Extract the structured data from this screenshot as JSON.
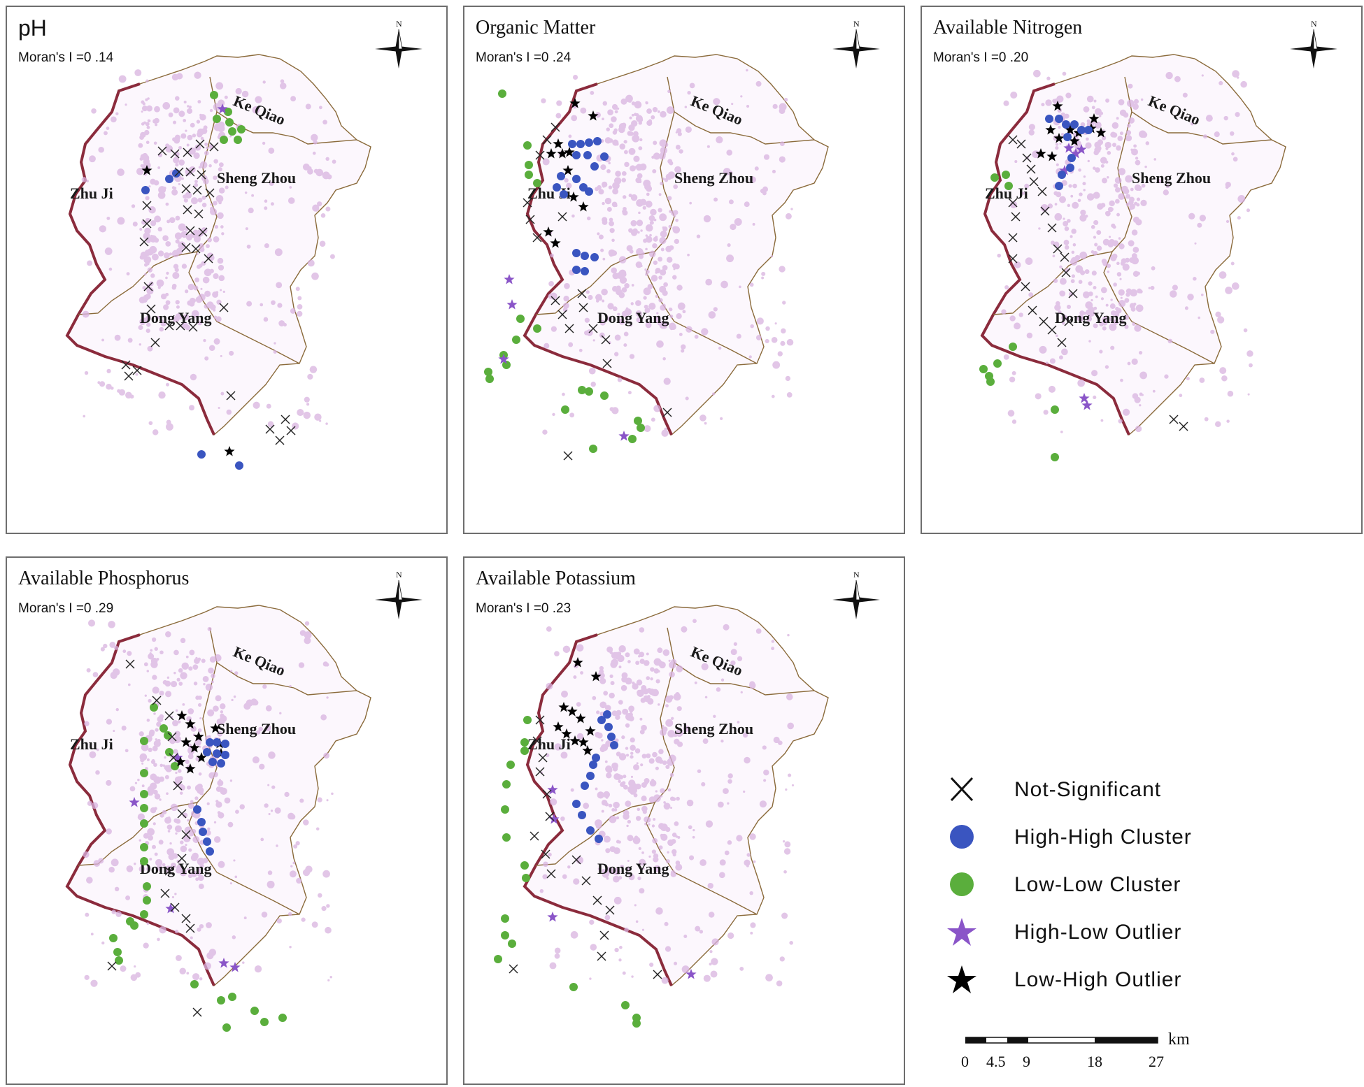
{
  "panels": [
    {
      "title": "pH",
      "moran": "Moran's I =0 .14",
      "title_style": "sans"
    },
    {
      "title": "Organic Matter",
      "moran": "Moran's I =0 .24",
      "title_style": "serif"
    },
    {
      "title": "Available Nitrogen",
      "moran": "Moran's I =0 .20",
      "title_style": "serif"
    },
    {
      "title": "Available Phosphorus",
      "moran": "Moran's I =0 .29",
      "title_style": "serif"
    },
    {
      "title": "Available Potassium",
      "moran": "Moran's I =0 .23",
      "title_style": "serif"
    }
  ],
  "regions": [
    "Ke Qiao",
    "Sheng Zhou",
    "Zhu Ji",
    "Dong Yang"
  ],
  "north_label": "N",
  "legend": {
    "items": [
      {
        "label": "Not-Significant",
        "symbol": "x-mark-icon",
        "color": "#111111"
      },
      {
        "label": "High-High Cluster",
        "symbol": "blue-dot-icon",
        "color": "#3a55c0"
      },
      {
        "label": "Low-Low Cluster",
        "symbol": "green-dot-icon",
        "color": "#5aae3c"
      },
      {
        "label": "High-Low Outlier",
        "symbol": "purple-star-icon",
        "color": "#8a55c8"
      },
      {
        "label": "Low-High Outlier",
        "symbol": "black-star-icon",
        "color": "#000000"
      }
    ]
  },
  "scale_bar": {
    "unit": "km",
    "ticks": [
      "0",
      "4.5",
      "9",
      "18",
      "27"
    ]
  },
  "colors": {
    "boundary_outer": "#8b2b3c",
    "boundary_inner": "#8a6a3a",
    "density": "#d9b3e0"
  }
}
